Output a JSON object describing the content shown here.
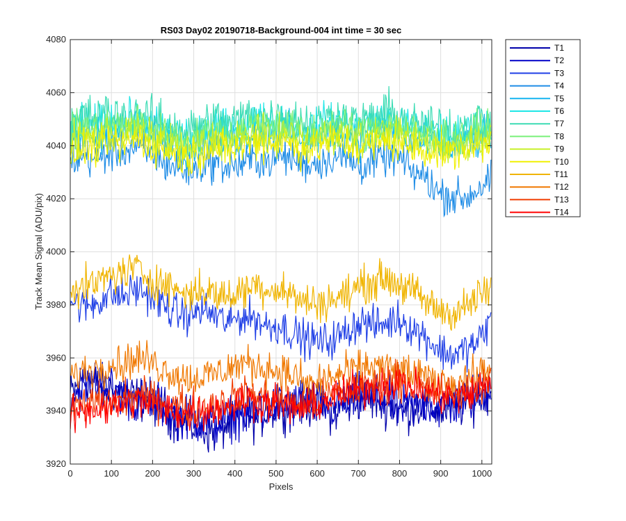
{
  "chart_data": {
    "type": "line",
    "title": "RS03 Day02 20190718-Background-004 int time = 30 sec",
    "xlabel": "Pixels",
    "ylabel": "Track Mean Signal (ADU/pix)",
    "xlim": [
      0,
      1024
    ],
    "ylim": [
      3920,
      4080
    ],
    "xticks": [
      0,
      100,
      200,
      300,
      400,
      500,
      600,
      700,
      800,
      900,
      1000
    ],
    "yticks": [
      3920,
      3940,
      3960,
      3980,
      4000,
      4020,
      4040,
      4060,
      4080
    ],
    "grid": true,
    "legend_position": "outside-right",
    "x": [
      0,
      32,
      64,
      96,
      128,
      160,
      192,
      224,
      256,
      288,
      320,
      352,
      384,
      416,
      448,
      480,
      512,
      544,
      576,
      608,
      640,
      672,
      704,
      736,
      768,
      800,
      832,
      864,
      896,
      928,
      960,
      992,
      1023
    ],
    "series": [
      {
        "name": "T1",
        "color": "#0000aa",
        "values": [
          3946,
          3952,
          3950,
          3948,
          3947,
          3945,
          3944,
          3941,
          3937,
          3935,
          3933,
          3932,
          3935,
          3938,
          3937,
          3940,
          3942,
          3941,
          3943,
          3941,
          3940,
          3942,
          3945,
          3944,
          3943,
          3940,
          3941,
          3942,
          3940,
          3941,
          3943,
          3945,
          3948
        ]
      },
      {
        "name": "T2",
        "color": "#0000c8",
        "values": [
          3944,
          3950,
          3951,
          3949,
          3946,
          3944,
          3943,
          3942,
          3939,
          3937,
          3936,
          3935,
          3937,
          3939,
          3938,
          3941,
          3943,
          3942,
          3944,
          3942,
          3941,
          3943,
          3946,
          3945,
          3944,
          3941,
          3942,
          3943,
          3941,
          3942,
          3944,
          3946,
          3949
        ]
      },
      {
        "name": "T3",
        "color": "#1e3ee6",
        "values": [
          3982,
          3979,
          3981,
          3984,
          3983,
          3986,
          3984,
          3980,
          3977,
          3976,
          3978,
          3976,
          3973,
          3976,
          3975,
          3972,
          3972,
          3969,
          3967,
          3966,
          3967,
          3970,
          3974,
          3972,
          3973,
          3975,
          3971,
          3968,
          3963,
          3961,
          3963,
          3966,
          3975
        ]
      },
      {
        "name": "T4",
        "color": "#1e8ce6",
        "values": [
          4034,
          4036,
          4035,
          4037,
          4038,
          4039,
          4037,
          4034,
          4032,
          4030,
          4033,
          4034,
          4032,
          4033,
          4035,
          4034,
          4036,
          4035,
          4033,
          4034,
          4036,
          4035,
          4032,
          4034,
          4036,
          4035,
          4030,
          4028,
          4022,
          4021,
          4020,
          4024,
          4027
        ]
      },
      {
        "name": "T5",
        "color": "#14b4f0",
        "values": [
          4041,
          4044,
          4043,
          4046,
          4045,
          4047,
          4044,
          4042,
          4040,
          4039,
          4042,
          4043,
          4041,
          4043,
          4045,
          4044,
          4046,
          4045,
          4042,
          4043,
          4045,
          4044,
          4042,
          4044,
          4046,
          4045,
          4042,
          4041,
          4040,
          4039,
          4041,
          4042,
          4044
        ]
      },
      {
        "name": "T6",
        "color": "#1ee6e6",
        "values": [
          4045,
          4049,
          4048,
          4050,
          4049,
          4051,
          4048,
          4046,
          4045,
          4043,
          4046,
          4048,
          4046,
          4048,
          4050,
          4049,
          4050,
          4048,
          4046,
          4048,
          4050,
          4049,
          4047,
          4049,
          4050,
          4049,
          4047,
          4046,
          4045,
          4044,
          4046,
          4047,
          4049
        ]
      },
      {
        "name": "T7",
        "color": "#3cdcb4",
        "values": [
          4047,
          4051,
          4050,
          4052,
          4050,
          4052,
          4050,
          4048,
          4047,
          4045,
          4048,
          4050,
          4048,
          4050,
          4052,
          4050,
          4052,
          4050,
          4048,
          4049,
          4051,
          4050,
          4048,
          4050,
          4052,
          4051,
          4048,
          4047,
          4047,
          4046,
          4048,
          4049,
          4050
        ]
      },
      {
        "name": "T8",
        "color": "#78f078",
        "values": [
          4043,
          4047,
          4046,
          4048,
          4047,
          4049,
          4046,
          4045,
          4043,
          4041,
          4044,
          4046,
          4044,
          4046,
          4048,
          4047,
          4048,
          4046,
          4044,
          4046,
          4048,
          4047,
          4045,
          4047,
          4048,
          4047,
          4045,
          4044,
          4043,
          4042,
          4044,
          4045,
          4047
        ]
      },
      {
        "name": "T9",
        "color": "#c8f028",
        "values": [
          4040,
          4044,
          4043,
          4045,
          4044,
          4046,
          4043,
          4042,
          4040,
          4038,
          4041,
          4043,
          4041,
          4043,
          4045,
          4044,
          4045,
          4043,
          4041,
          4043,
          4045,
          4044,
          4042,
          4044,
          4045,
          4044,
          4042,
          4041,
          4040,
          4039,
          4041,
          4042,
          4044
        ]
      },
      {
        "name": "T10",
        "color": "#f0f000",
        "values": [
          4035,
          4040,
          4039,
          4041,
          4040,
          4043,
          4040,
          4039,
          4037,
          4035,
          4038,
          4040,
          4038,
          4040,
          4042,
          4041,
          4042,
          4040,
          4038,
          4040,
          4042,
          4041,
          4039,
          4041,
          4042,
          4041,
          4039,
          4038,
          4038,
          4037,
          4039,
          4040,
          4042
        ]
      },
      {
        "name": "T11",
        "color": "#f0b400",
        "values": [
          3988,
          3986,
          3988,
          3991,
          3992,
          3994,
          3990,
          3988,
          3986,
          3984,
          3986,
          3984,
          3983,
          3985,
          3988,
          3986,
          3986,
          3983,
          3981,
          3981,
          3982,
          3984,
          3987,
          3989,
          3990,
          3988,
          3985,
          3981,
          3978,
          3977,
          3979,
          3983,
          3986
        ]
      },
      {
        "name": "T12",
        "color": "#f07800",
        "values": [
          3953,
          3955,
          3956,
          3958,
          3958,
          3960,
          3959,
          3956,
          3954,
          3952,
          3953,
          3954,
          3956,
          3958,
          3957,
          3956,
          3955,
          3953,
          3950,
          3951,
          3953,
          3954,
          3956,
          3957,
          3956,
          3955,
          3954,
          3952,
          3951,
          3950,
          3952,
          3954,
          3956
        ]
      },
      {
        "name": "T13",
        "color": "#f03c00",
        "values": [
          3940,
          3942,
          3944,
          3943,
          3944,
          3946,
          3945,
          3943,
          3942,
          3941,
          3942,
          3943,
          3944,
          3946,
          3946,
          3945,
          3944,
          3943,
          3942,
          3944,
          3946,
          3948,
          3949,
          3950,
          3951,
          3952,
          3950,
          3948,
          3947,
          3946,
          3947,
          3949,
          3951
        ]
      },
      {
        "name": "T14",
        "color": "#ff0000",
        "values": [
          3938,
          3940,
          3941,
          3942,
          3942,
          3944,
          3943,
          3941,
          3940,
          3939,
          3940,
          3941,
          3942,
          3944,
          3944,
          3943,
          3942,
          3941,
          3941,
          3943,
          3945,
          3947,
          3948,
          3949,
          3950,
          3951,
          3949,
          3947,
          3946,
          3945,
          3946,
          3948,
          3950
        ]
      }
    ],
    "noise_amplitude": [
      6,
      6,
      5,
      5,
      5,
      5,
      6,
      5,
      5,
      5,
      5,
      5,
      5,
      5
    ]
  }
}
